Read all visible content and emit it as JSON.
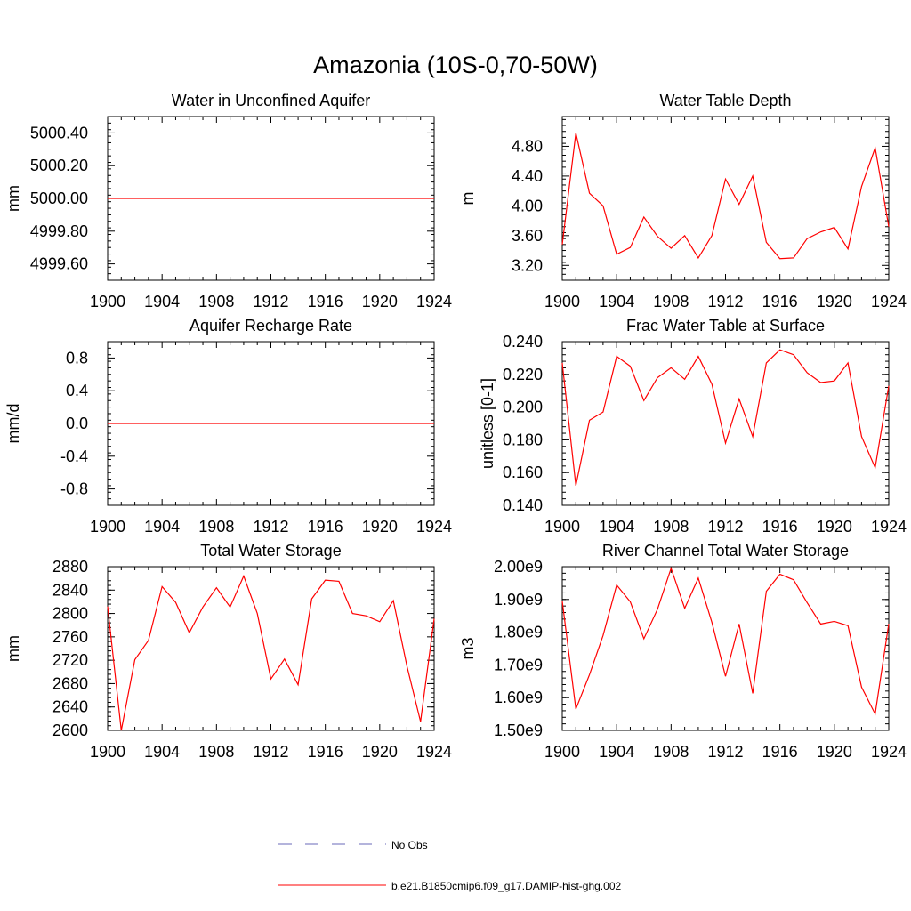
{
  "title": "Amazonia (10S-0,70-50W)",
  "colors": {
    "series": "#ff0000",
    "obs": "#6a6ab8",
    "axis": "#000000"
  },
  "chart_data": [
    {
      "type": "line",
      "title": "Water in Unconfined Aquifer",
      "ylabel": "mm",
      "xlim": [
        1900,
        1924
      ],
      "ylim": [
        4999.5,
        5000.5
      ],
      "xticks": [
        "1900",
        "1904",
        "1908",
        "1912",
        "1916",
        "1920",
        "1924"
      ],
      "yticks": [
        4999.6,
        4999.8,
        5000.0,
        5000.2,
        5000.4
      ],
      "ytick_labels": [
        "4999.60",
        "4999.80",
        "5000.00",
        "5000.20",
        "5000.40"
      ],
      "x": [
        1900,
        1901,
        1902,
        1903,
        1904,
        1905,
        1906,
        1907,
        1908,
        1909,
        1910,
        1911,
        1912,
        1913,
        1914,
        1915,
        1916,
        1917,
        1918,
        1919,
        1920,
        1921,
        1922,
        1923,
        1924
      ],
      "series": [
        {
          "values": [
            5000,
            5000,
            5000,
            5000,
            5000,
            5000,
            5000,
            5000,
            5000,
            5000,
            5000,
            5000,
            5000,
            5000,
            5000,
            5000,
            5000,
            5000,
            5000,
            5000,
            5000,
            5000,
            5000,
            5000,
            5000
          ]
        }
      ]
    },
    {
      "type": "line",
      "title": "Water Table Depth",
      "ylabel": "m",
      "xlim": [
        1900,
        1924
      ],
      "ylim": [
        3.0,
        5.2
      ],
      "xticks": [
        "1900",
        "1904",
        "1908",
        "1912",
        "1916",
        "1920",
        "1924"
      ],
      "yticks": [
        3.2,
        3.6,
        4.0,
        4.4,
        4.8
      ],
      "ytick_labels": [
        "3.20",
        "3.60",
        "4.00",
        "4.40",
        "4.80"
      ],
      "x": [
        1900,
        1901,
        1902,
        1903,
        1904,
        1905,
        1906,
        1907,
        1908,
        1909,
        1910,
        1911,
        1912,
        1913,
        1914,
        1915,
        1916,
        1917,
        1918,
        1919,
        1920,
        1921,
        1922,
        1923,
        1924
      ],
      "series": [
        {
          "values": [
            3.48,
            4.98,
            4.17,
            4.0,
            3.35,
            3.44,
            3.85,
            3.59,
            3.43,
            3.6,
            3.3,
            3.6,
            4.36,
            4.02,
            4.4,
            3.51,
            3.29,
            3.3,
            3.56,
            3.65,
            3.71,
            3.42,
            4.26,
            4.78,
            3.72
          ]
        }
      ]
    },
    {
      "type": "line",
      "title": "Aquifer Recharge Rate",
      "ylabel": "mm/d",
      "xlim": [
        1900,
        1924
      ],
      "ylim": [
        -1.0,
        1.0
      ],
      "xticks": [
        "1900",
        "1904",
        "1908",
        "1912",
        "1916",
        "1920",
        "1924"
      ],
      "yticks": [
        -0.8,
        -0.4,
        0.0,
        0.4,
        0.8
      ],
      "ytick_labels": [
        "-0.8",
        "-0.4",
        "0.0",
        "0.4",
        "0.8"
      ],
      "x": [
        1900,
        1901,
        1902,
        1903,
        1904,
        1905,
        1906,
        1907,
        1908,
        1909,
        1910,
        1911,
        1912,
        1913,
        1914,
        1915,
        1916,
        1917,
        1918,
        1919,
        1920,
        1921,
        1922,
        1923,
        1924
      ],
      "series": [
        {
          "values": [
            0,
            0,
            0,
            0,
            0,
            0,
            0,
            0,
            0,
            0,
            0,
            0,
            0,
            0,
            0,
            0,
            0,
            0,
            0,
            0,
            0,
            0,
            0,
            0,
            0
          ]
        }
      ]
    },
    {
      "type": "line",
      "title": "Frac Water Table at Surface",
      "ylabel": "unitless [0-1]",
      "xlim": [
        1900,
        1924
      ],
      "ylim": [
        0.14,
        0.24
      ],
      "xticks": [
        "1900",
        "1904",
        "1908",
        "1912",
        "1916",
        "1920",
        "1924"
      ],
      "yticks": [
        0.14,
        0.16,
        0.18,
        0.2,
        0.22,
        0.24
      ],
      "ytick_labels": [
        "0.140",
        "0.160",
        "0.180",
        "0.200",
        "0.220",
        "0.240"
      ],
      "x": [
        1900,
        1901,
        1902,
        1903,
        1904,
        1905,
        1906,
        1907,
        1908,
        1909,
        1910,
        1911,
        1912,
        1913,
        1914,
        1915,
        1916,
        1917,
        1918,
        1919,
        1920,
        1921,
        1922,
        1923,
        1924
      ],
      "series": [
        {
          "values": [
            0.227,
            0.152,
            0.192,
            0.197,
            0.231,
            0.225,
            0.204,
            0.218,
            0.224,
            0.217,
            0.231,
            0.214,
            0.178,
            0.205,
            0.182,
            0.227,
            0.235,
            0.232,
            0.221,
            0.215,
            0.216,
            0.227,
            0.182,
            0.163,
            0.213
          ]
        }
      ]
    },
    {
      "type": "line",
      "title": "Total Water Storage",
      "ylabel": "mm",
      "xlim": [
        1900,
        1924
      ],
      "ylim": [
        2600,
        2880
      ],
      "xticks": [
        "1900",
        "1904",
        "1908",
        "1912",
        "1916",
        "1920",
        "1924"
      ],
      "yticks": [
        2600,
        2640,
        2680,
        2720,
        2760,
        2800,
        2840,
        2880
      ],
      "ytick_labels": [
        "2600",
        "2640",
        "2680",
        "2720",
        "2760",
        "2800",
        "2840",
        "2880"
      ],
      "x": [
        1900,
        1901,
        1902,
        1903,
        1904,
        1905,
        1906,
        1907,
        1908,
        1909,
        1910,
        1911,
        1912,
        1913,
        1914,
        1915,
        1916,
        1917,
        1918,
        1919,
        1920,
        1921,
        1922,
        1923,
        1924
      ],
      "series": [
        {
          "values": [
            2812,
            2600,
            2721,
            2754,
            2846,
            2819,
            2767,
            2811,
            2844,
            2811,
            2864,
            2800,
            2688,
            2722,
            2678,
            2825,
            2857,
            2855,
            2800,
            2796,
            2786,
            2822,
            2710,
            2615,
            2791
          ]
        }
      ]
    },
    {
      "type": "line",
      "title": "River Channel Total Water Storage",
      "ylabel": "m3",
      "xlim": [
        1900,
        1924
      ],
      "ylim": [
        1500000000.0,
        2000000000.0
      ],
      "xticks": [
        "1900",
        "1904",
        "1908",
        "1912",
        "1916",
        "1920",
        "1924"
      ],
      "yticks": [
        1500000000.0,
        1600000000.0,
        1700000000.0,
        1800000000.0,
        1900000000.0,
        2000000000.0
      ],
      "ytick_labels": [
        "1.50e9",
        "1.60e9",
        "1.70e9",
        "1.80e9",
        "1.90e9",
        "2.00e9"
      ],
      "x": [
        1900,
        1901,
        1902,
        1903,
        1904,
        1905,
        1906,
        1907,
        1908,
        1909,
        1910,
        1911,
        1912,
        1913,
        1914,
        1915,
        1916,
        1917,
        1918,
        1919,
        1920,
        1921,
        1922,
        1923,
        1924
      ],
      "series": [
        {
          "values": [
            1895000000.0,
            1565000000.0,
            1670000000.0,
            1790000000.0,
            1944000000.0,
            1893000000.0,
            1780000000.0,
            1870000000.0,
            1995000000.0,
            1873000000.0,
            1965000000.0,
            1830000000.0,
            1665000000.0,
            1825000000.0,
            1613000000.0,
            1925000000.0,
            1977000000.0,
            1960000000.0,
            1890000000.0,
            1825000000.0,
            1833000000.0,
            1820000000.0,
            1632000000.0,
            1550000000.0,
            1826000000.0
          ]
        }
      ]
    }
  ],
  "legend": {
    "entries": [
      {
        "label": "No Obs",
        "style": "dashed"
      },
      {
        "label": "b.e21.B1850cmip6.f09_g17.DAMIP-hist-ghg.002",
        "style": "solid"
      }
    ]
  }
}
